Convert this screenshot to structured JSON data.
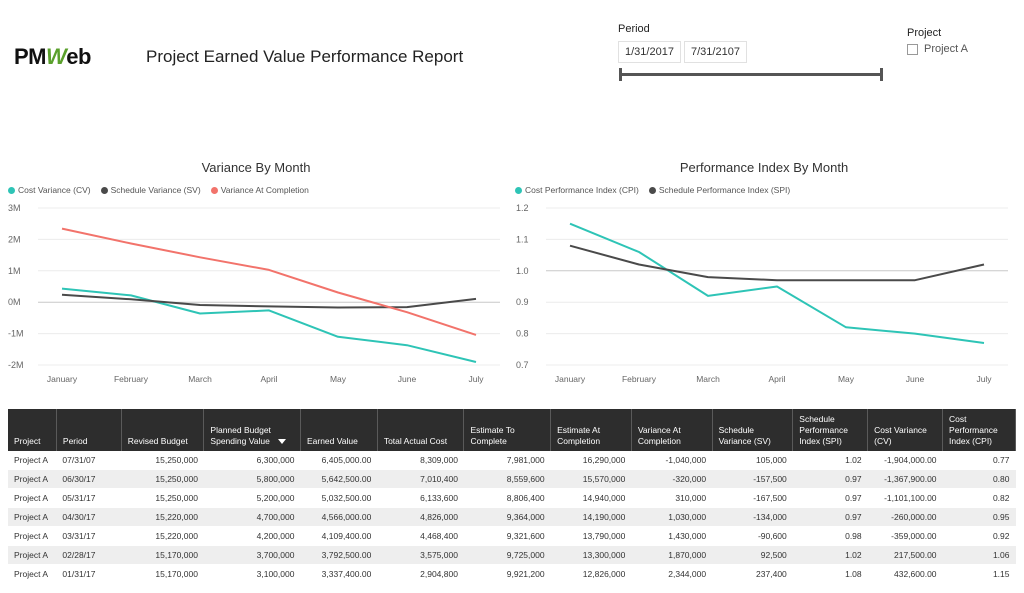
{
  "header": {
    "logo_prefix": "PM",
    "logo_mark": "W",
    "logo_suffix": "eb",
    "title": "Project Earned Value Performance Report"
  },
  "filters": {
    "period_label": "Period",
    "start_date": "1/31/2017",
    "end_date": "7/31/2107",
    "project_label": "Project",
    "project_option": "Project A",
    "project_option_checked": false
  },
  "colors": {
    "teal": "#2ec4b6",
    "dark": "#4a4a4a",
    "salmon": "#f2736b"
  },
  "chart_data": [
    {
      "type": "line",
      "title": "Variance By Month",
      "categories": [
        "January",
        "February",
        "March",
        "April",
        "May",
        "June",
        "July"
      ],
      "yticks": [
        "3M",
        "2M",
        "1M",
        "0M",
        "-1M",
        "-2M"
      ],
      "ylim": [
        -2000000,
        3000000
      ],
      "series": [
        {
          "name": "Cost Variance (CV)",
          "color": "#2ec4b6",
          "values": [
            432600,
            217500,
            -359000,
            -260000,
            -1101100,
            -1367900,
            -1904000
          ]
        },
        {
          "name": "Schedule Variance (SV)",
          "color": "#4a4a4a",
          "values": [
            237400,
            92500,
            -90600,
            -134000,
            -167500,
            -157500,
            105000
          ]
        },
        {
          "name": "Variance At Completion",
          "color": "#f2736b",
          "values": [
            2344000,
            1870000,
            1430000,
            1030000,
            310000,
            -320000,
            -1040000
          ]
        }
      ]
    },
    {
      "type": "line",
      "title": "Performance Index By Month",
      "categories": [
        "January",
        "February",
        "March",
        "April",
        "May",
        "June",
        "July"
      ],
      "yticks": [
        "1.2",
        "1.1",
        "1.0",
        "0.9",
        "0.8",
        "0.7"
      ],
      "ylim": [
        0.7,
        1.2
      ],
      "series": [
        {
          "name": "Cost Performance Index (CPI)",
          "color": "#2ec4b6",
          "values": [
            1.15,
            1.06,
            0.92,
            0.95,
            0.82,
            0.8,
            0.77
          ]
        },
        {
          "name": "Schedule Performance Index (SPI)",
          "color": "#4a4a4a",
          "values": [
            1.08,
            1.02,
            0.98,
            0.97,
            0.97,
            0.97,
            1.02
          ]
        }
      ]
    }
  ],
  "table": {
    "headers": [
      "Project",
      "Period",
      "Revised Budget",
      "Planned Budget Spending Value",
      "Earned Value",
      "Total Actual Cost",
      "Estimate To Complete",
      "Estimate At Completion",
      "Variance At Completion",
      "Schedule Variance (SV)",
      "Schedule Performance Index (SPI)",
      "Cost Variance (CV)",
      "Cost Performance Index (CPI)"
    ],
    "sorted_column": 3,
    "rows": [
      [
        "Project A",
        "07/31/07",
        "15,250,000",
        "6,300,000",
        "6,405,000.00",
        "8,309,000",
        "7,981,000",
        "16,290,000",
        "-1,040,000",
        "105,000",
        "1.02",
        "-1,904,000.00",
        "0.77"
      ],
      [
        "Project A",
        "06/30/17",
        "15,250,000",
        "5,800,000",
        "5,642,500.00",
        "7,010,400",
        "8,559,600",
        "15,570,000",
        "-320,000",
        "-157,500",
        "0.97",
        "-1,367,900.00",
        "0.80"
      ],
      [
        "Project A",
        "05/31/17",
        "15,250,000",
        "5,200,000",
        "5,032,500.00",
        "6,133,600",
        "8,806,400",
        "14,940,000",
        "310,000",
        "-167,500",
        "0.97",
        "-1,101,100.00",
        "0.82"
      ],
      [
        "Project A",
        "04/30/17",
        "15,220,000",
        "4,700,000",
        "4,566,000.00",
        "4,826,000",
        "9,364,000",
        "14,190,000",
        "1,030,000",
        "-134,000",
        "0.97",
        "-260,000.00",
        "0.95"
      ],
      [
        "Project A",
        "03/31/17",
        "15,220,000",
        "4,200,000",
        "4,109,400.00",
        "4,468,400",
        "9,321,600",
        "13,790,000",
        "1,430,000",
        "-90,600",
        "0.98",
        "-359,000.00",
        "0.92"
      ],
      [
        "Project A",
        "02/28/17",
        "15,170,000",
        "3,700,000",
        "3,792,500.00",
        "3,575,000",
        "9,725,000",
        "13,300,000",
        "1,870,000",
        "92,500",
        "1.02",
        "217,500.00",
        "1.06"
      ],
      [
        "Project A",
        "01/31/17",
        "15,170,000",
        "3,100,000",
        "3,337,400.00",
        "2,904,800",
        "9,921,200",
        "12,826,000",
        "2,344,000",
        "237,400",
        "1.08",
        "432,600.00",
        "1.15"
      ]
    ]
  }
}
